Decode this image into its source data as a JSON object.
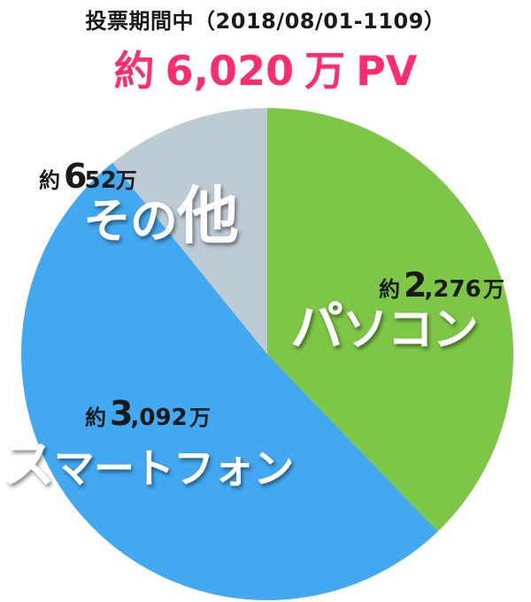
{
  "header": {
    "period_text": "投票期間中（2018/08/01-1109）",
    "total_prefix": "約",
    "total_value": "6,020",
    "total_unit": "万",
    "total_suffix": "PV"
  },
  "colors": {
    "pasokon": "#7dc646",
    "smartphone": "#42a8f0",
    "other": "#bdcbd5",
    "accent": "#ff2d6e",
    "text": "#1a1a1a",
    "background": "#ffffff"
  },
  "chart_data": {
    "type": "pie",
    "title": "投票期間中（2018/08/01-1109）",
    "total_label": "約 6,020 万 PV",
    "unit": "万 PV",
    "start_angle_deg": 0,
    "direction": "clockwise",
    "slices": [
      {
        "name": "パソコン",
        "value": 2276,
        "value_text": "2,276",
        "prefix": "約",
        "unit": "万",
        "color": "#7dc646"
      },
      {
        "name": "スマートフォン",
        "value": 3092,
        "value_text": "3,092",
        "prefix": "約",
        "unit": "万",
        "color": "#42a8f0"
      },
      {
        "name": "その他",
        "value": 652,
        "value_text": "652",
        "prefix": "約",
        "unit": "万",
        "color": "#bdcbd5"
      }
    ]
  }
}
